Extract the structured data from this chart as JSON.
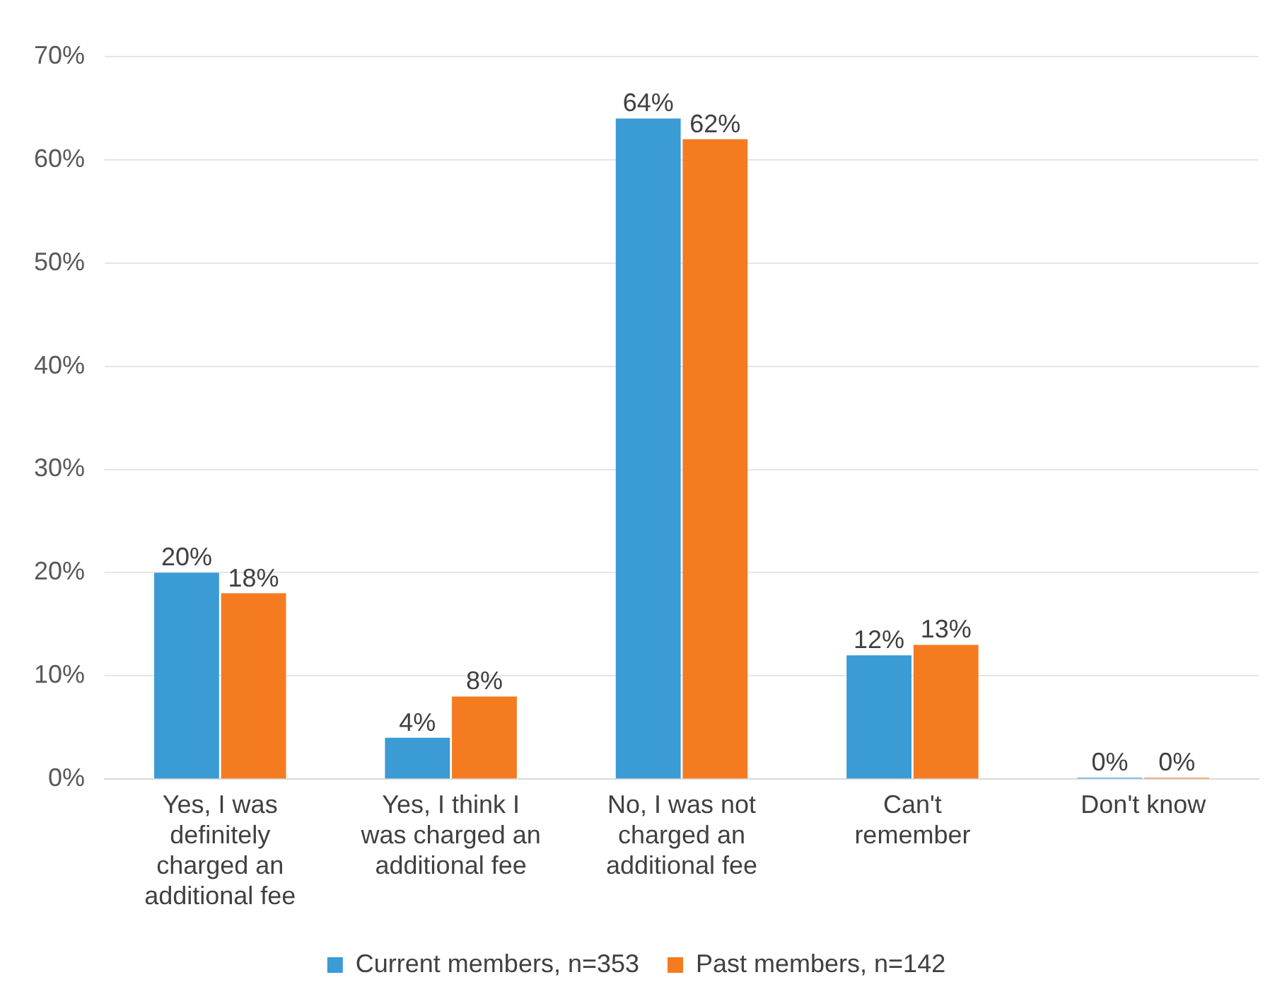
{
  "chart_data": {
    "type": "bar",
    "categories": [
      "Yes, I was definitely charged an additional fee",
      "Yes, I think I was charged an additional fee",
      "No, I was not charged an additional fee",
      "Can't remember",
      "Don't know"
    ],
    "series": [
      {
        "name": "Current members, n=353",
        "color": "#3a9bd5",
        "values": [
          20,
          4,
          64,
          12,
          0
        ],
        "value_labels": [
          "20%",
          "4%",
          "64%",
          "12%",
          "0%"
        ]
      },
      {
        "name": "Past members, n=142",
        "color": "#f47b20",
        "values": [
          18,
          8,
          62,
          13,
          0
        ],
        "value_labels": [
          "18%",
          "8%",
          "62%",
          "13%",
          "0%"
        ]
      }
    ],
    "ylim": [
      0,
      70
    ],
    "yticks": [
      {
        "value": 0,
        "label": "0%"
      },
      {
        "value": 10,
        "label": "10%"
      },
      {
        "value": 20,
        "label": "20%"
      },
      {
        "value": 30,
        "label": "30%"
      },
      {
        "value": 40,
        "label": "40%"
      },
      {
        "value": 50,
        "label": "50%"
      },
      {
        "value": 60,
        "label": "60%"
      },
      {
        "value": 70,
        "label": "70%"
      }
    ],
    "grid": "y",
    "legend": "bottom"
  }
}
